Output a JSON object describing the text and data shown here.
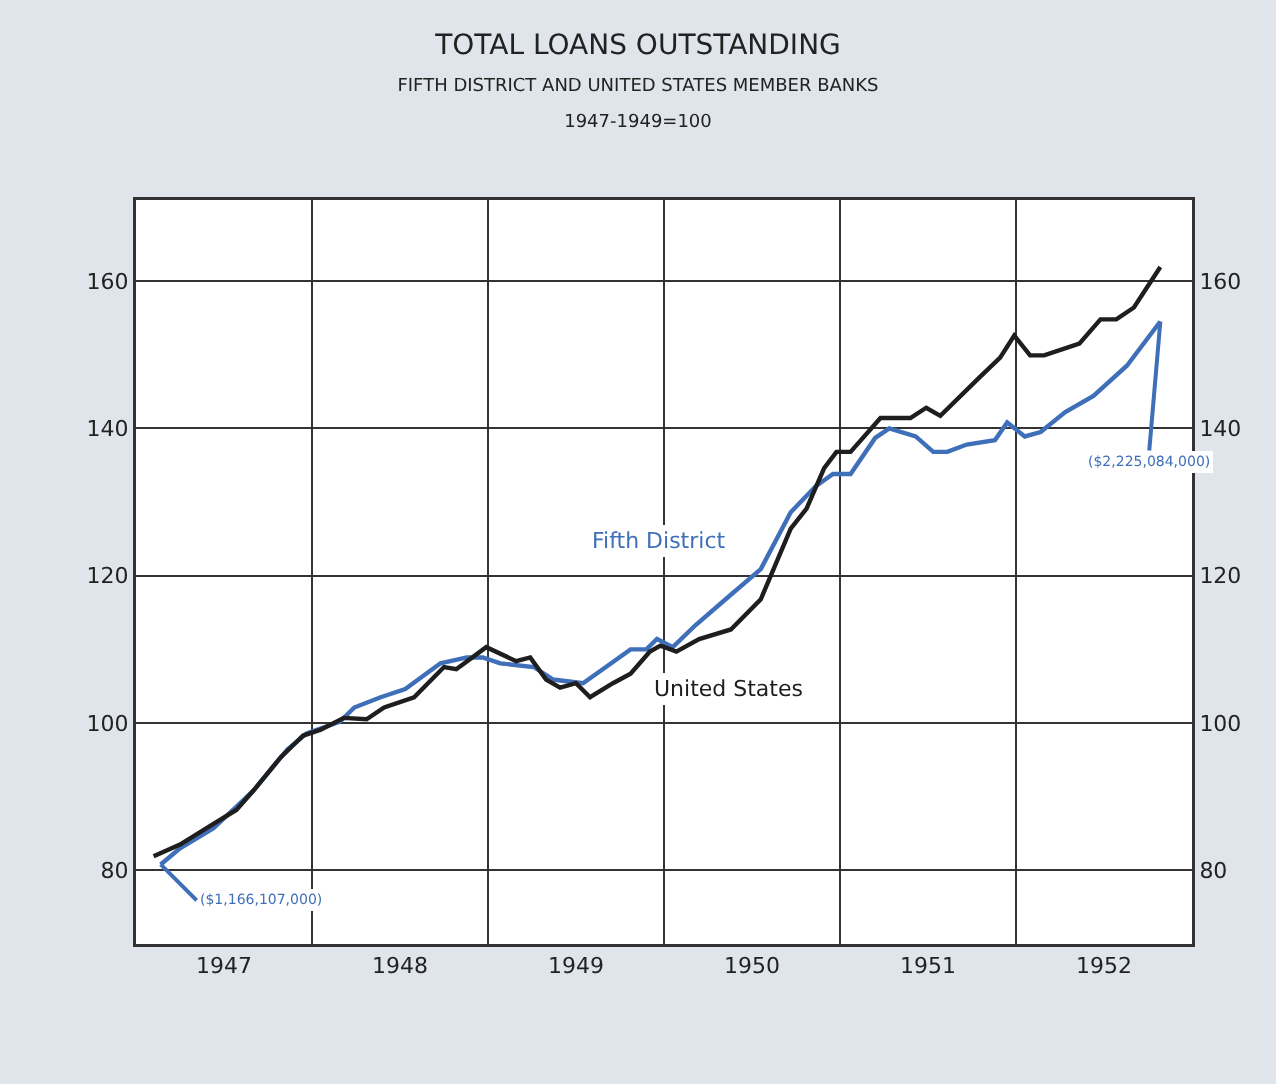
{
  "chart_data": {
    "type": "line",
    "title": "TOTAL LOANS OUTSTANDING",
    "subtitle": "FIFTH DISTRICT AND UNITED STATES MEMBER BANKS\n1947-1949=100",
    "series": [
      {
        "name": "Fifth District",
        "color": "#3f6fb8",
        "x": [
          1947.14,
          1947.25,
          1947.44,
          1947.67,
          1947.86,
          1947.97,
          1948.16,
          1948.24,
          1948.39,
          1948.53,
          1948.73,
          1948.88,
          1948.97,
          1949.07,
          1949.26,
          1949.37,
          1949.54,
          1949.67,
          1949.81,
          1949.9,
          1949.96,
          1950.05,
          1950.18,
          1950.35,
          1950.55,
          1950.72,
          1950.86,
          1950.96,
          1951.06,
          1951.2,
          1951.28,
          1951.43,
          1951.53,
          1951.61,
          1951.72,
          1951.88,
          1951.95,
          1952.05,
          1952.14,
          1952.28,
          1952.44,
          1952.63,
          1952.82
        ],
        "values": [
          80.8,
          83.0,
          85.7,
          90.9,
          96.4,
          98.6,
          100.2,
          102.1,
          103.5,
          104.6,
          108.1,
          108.9,
          108.9,
          108.1,
          107.6,
          105.9,
          105.4,
          107.6,
          110.0,
          110.0,
          111.4,
          110.3,
          113.3,
          116.8,
          120.9,
          128.6,
          132.1,
          133.8,
          133.8,
          138.7,
          140.0,
          138.9,
          136.8,
          136.8,
          137.8,
          138.4,
          140.8,
          138.9,
          139.5,
          142.2,
          144.4,
          148.5,
          154.5
        ]
      },
      {
        "name": "United States",
        "color": "#1e1e1e",
        "x": [
          1947.1,
          1947.25,
          1947.44,
          1947.57,
          1947.67,
          1947.82,
          1947.95,
          1948.05,
          1948.18,
          1948.31,
          1948.41,
          1948.58,
          1948.75,
          1948.82,
          1948.99,
          1949.16,
          1949.24,
          1949.33,
          1949.41,
          1949.5,
          1949.58,
          1949.71,
          1949.81,
          1949.92,
          1949.98,
          1950.07,
          1950.2,
          1950.38,
          1950.55,
          1950.72,
          1950.81,
          1950.91,
          1950.98,
          1951.06,
          1951.23,
          1951.4,
          1951.49,
          1951.57,
          1951.8,
          1951.91,
          1951.99,
          1952.08,
          1952.16,
          1952.36,
          1952.48,
          1952.57,
          1952.67,
          1952.82
        ],
        "values": [
          81.9,
          83.5,
          86.3,
          88.2,
          90.9,
          95.3,
          98.3,
          99.1,
          100.7,
          100.5,
          102.1,
          103.5,
          107.6,
          107.3,
          110.3,
          108.4,
          108.9,
          105.9,
          104.8,
          105.4,
          103.5,
          105.4,
          106.7,
          109.7,
          110.5,
          109.7,
          111.4,
          112.7,
          116.8,
          126.4,
          129.1,
          134.6,
          136.8,
          136.8,
          141.4,
          141.4,
          142.8,
          141.7,
          147.1,
          149.6,
          152.6,
          149.9,
          149.9,
          151.5,
          154.8,
          154.8,
          156.4,
          161.9
        ]
      }
    ],
    "xlim": [
      1947,
      1953
    ],
    "xticks": [
      {
        "value": 1947.5,
        "label": "1947"
      },
      {
        "value": 1948.5,
        "label": "1948"
      },
      {
        "value": 1949.5,
        "label": "1949"
      },
      {
        "value": 1950.5,
        "label": "1950"
      },
      {
        "value": 1951.5,
        "label": "1951"
      },
      {
        "value": 1952.5,
        "label": "1952"
      },
      {
        "value": 1948,
        "label": null
      },
      {
        "value": 1949,
        "label": null
      },
      {
        "value": 1950,
        "label": null
      },
      {
        "value": 1951,
        "label": null
      },
      {
        "value": 1952,
        "label": null
      }
    ],
    "ylim": [
      70,
      171
    ],
    "yticks": [
      80,
      100,
      120,
      140,
      160
    ],
    "y2lim": [
      70,
      171
    ],
    "y2ticks": [
      80,
      100,
      120,
      140,
      160
    ],
    "grid": true,
    "line_style": "solid",
    "annotations": [
      {
        "text": "($1,166,107,000)",
        "x": 1947.14,
        "y": 80.8
      },
      {
        "text": "($2,225,084,000)",
        "x": 1952.82,
        "y": 154.5
      }
    ]
  }
}
